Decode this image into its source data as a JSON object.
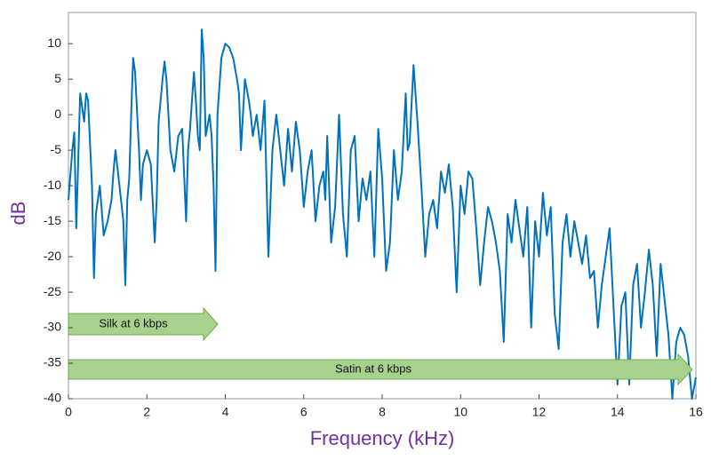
{
  "chart_data": {
    "type": "line",
    "xlabel": "Frequency (kHz)",
    "ylabel": "dB",
    "xlim": [
      0,
      16
    ],
    "ylim": [
      -40,
      14.4
    ],
    "xticks": [
      0,
      2,
      4,
      6,
      8,
      10,
      12,
      14,
      16
    ],
    "yticks": [
      -40,
      -35,
      -30,
      -25,
      -20,
      -15,
      -10,
      -5,
      0,
      5,
      10
    ],
    "annotations": [
      {
        "text": "Silk at 6 kbps"
      },
      {
        "text": "Satin at 6 kbps"
      }
    ],
    "series": [
      {
        "color": "#0072bd",
        "x": [
          0,
          0.1,
          0.15,
          0.2,
          0.3,
          0.4,
          0.45,
          0.5,
          0.6,
          0.65,
          0.7,
          0.8,
          0.9,
          1.0,
          1.1,
          1.15,
          1.2,
          1.3,
          1.4,
          1.45,
          1.5,
          1.55,
          1.6,
          1.65,
          1.7,
          1.8,
          1.85,
          1.9,
          2.0,
          2.1,
          2.2,
          2.25,
          2.3,
          2.4,
          2.45,
          2.5,
          2.6,
          2.7,
          2.8,
          2.9,
          3.0,
          3.05,
          3.1,
          3.2,
          3.25,
          3.3,
          3.35,
          3.4,
          3.45,
          3.5,
          3.6,
          3.65,
          3.7,
          3.75,
          3.8,
          3.9,
          4.0,
          4.1,
          4.2,
          4.3,
          4.35,
          4.4,
          4.5,
          4.6,
          4.65,
          4.7,
          4.8,
          4.9,
          5.0,
          5.1,
          5.2,
          5.3,
          5.4,
          5.5,
          5.6,
          5.7,
          5.8,
          5.9,
          6.0,
          6.1,
          6.2,
          6.3,
          6.4,
          6.5,
          6.55,
          6.6,
          6.7,
          6.8,
          6.9,
          7.0,
          7.1,
          7.2,
          7.3,
          7.4,
          7.5,
          7.6,
          7.7,
          7.8,
          7.9,
          8.0,
          8.1,
          8.2,
          8.3,
          8.4,
          8.5,
          8.6,
          8.65,
          8.7,
          8.8,
          8.9,
          9.0,
          9.1,
          9.2,
          9.3,
          9.4,
          9.5,
          9.6,
          9.7,
          9.8,
          9.9,
          10.0,
          10.1,
          10.2,
          10.3,
          10.4,
          10.5,
          10.6,
          10.7,
          10.8,
          10.9,
          11.0,
          11.1,
          11.2,
          11.3,
          11.4,
          11.5,
          11.6,
          11.7,
          11.8,
          11.9,
          12.0,
          12.1,
          12.2,
          12.3,
          12.4,
          12.5,
          12.6,
          12.7,
          12.8,
          12.9,
          13.0,
          13.1,
          13.2,
          13.3,
          13.4,
          13.5,
          13.6,
          13.7,
          13.8,
          13.9,
          14.0,
          14.1,
          14.2,
          14.3,
          14.4,
          14.5,
          14.6,
          14.7,
          14.8,
          14.9,
          15.0,
          15.1,
          15.2,
          15.3,
          15.4,
          15.5,
          15.6,
          15.7,
          15.8,
          15.9,
          16.0
        ],
        "values": [
          -12,
          -5,
          -2.5,
          -16,
          3,
          -1,
          3,
          2,
          -10,
          -23,
          -14,
          -10,
          -17,
          -15,
          -12,
          -8,
          -5,
          -10,
          -15,
          -24,
          -12,
          -9,
          0,
          8,
          6,
          -5,
          -12,
          -7,
          -5,
          -7,
          -18,
          -12,
          -1,
          5,
          7.5,
          5,
          -5,
          -8,
          -3,
          -2,
          -15,
          -5,
          -2,
          6,
          2,
          -3,
          -5,
          12,
          8,
          -3,
          0,
          -3,
          -10,
          -22,
          0,
          8,
          10,
          9.5,
          8,
          5,
          3,
          -5,
          5,
          2,
          0,
          -3,
          0,
          -5,
          2,
          -20,
          -5,
          0,
          -5,
          -10,
          -2,
          -8,
          -1,
          -5,
          -13,
          -8,
          -5,
          -15,
          -10,
          -8,
          -12,
          -3,
          -18,
          -13,
          0,
          -14,
          -20,
          -5,
          -3,
          -15,
          -9,
          -12,
          -8,
          -20,
          -2,
          -9,
          -22,
          -18,
          -5,
          -12,
          -8,
          3,
          -5,
          -4,
          7,
          -1,
          -10,
          -20,
          -14,
          -12,
          -16,
          -8,
          -11,
          -7,
          -13,
          -25,
          -10,
          -14,
          -8,
          -9,
          -16,
          -24,
          -18,
          -13,
          -15,
          -18,
          -22,
          -32,
          -14,
          -18,
          -12,
          -16,
          -20,
          -13,
          -30,
          -15,
          -20,
          -11,
          -17,
          -13,
          -28,
          -33,
          -18,
          -14,
          -20,
          -15,
          -18,
          -21,
          -17,
          -23,
          -22,
          -30,
          -24,
          -20,
          -16,
          -27,
          -38,
          -27,
          -25,
          -38,
          -24,
          -21,
          -30,
          -25,
          -19,
          -24,
          -34,
          -21,
          -26,
          -31,
          -40,
          -32,
          -30,
          -31,
          -34,
          -40,
          -37
        ]
      }
    ]
  }
}
